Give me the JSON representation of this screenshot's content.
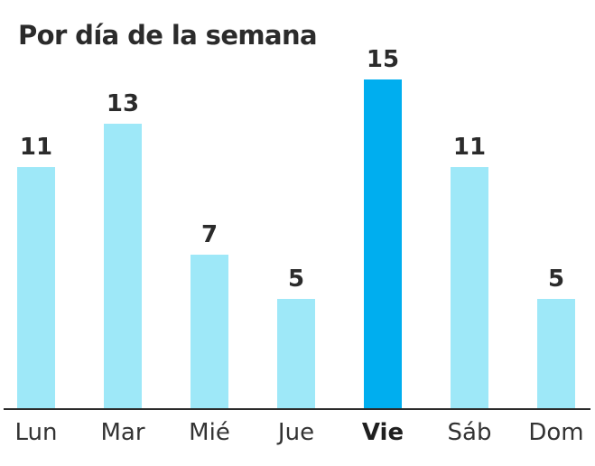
{
  "title": "Por día de la semana",
  "chart_data": {
    "type": "bar",
    "title": "Por día de la semana",
    "categories": [
      "Lun",
      "Mar",
      "Mié",
      "Jue",
      "Vie",
      "Sáb",
      "Dom"
    ],
    "values": [
      11,
      13,
      7,
      5,
      15,
      11,
      5
    ],
    "highlight_index": 4,
    "highlight_category": "Vie",
    "value_labels": true,
    "xlabel": "",
    "ylabel": "",
    "ylim": [
      0,
      15
    ],
    "grid": false,
    "legend": "none"
  },
  "colors": {
    "bar": "#9ee8f8",
    "bar_highlight": "#00aeef",
    "title_text": "#2b2b2b",
    "value_text": "#2b2b2b",
    "axis_label_text": "#333333",
    "axis_line": "#2b2b2b",
    "background": "#ffffff"
  }
}
